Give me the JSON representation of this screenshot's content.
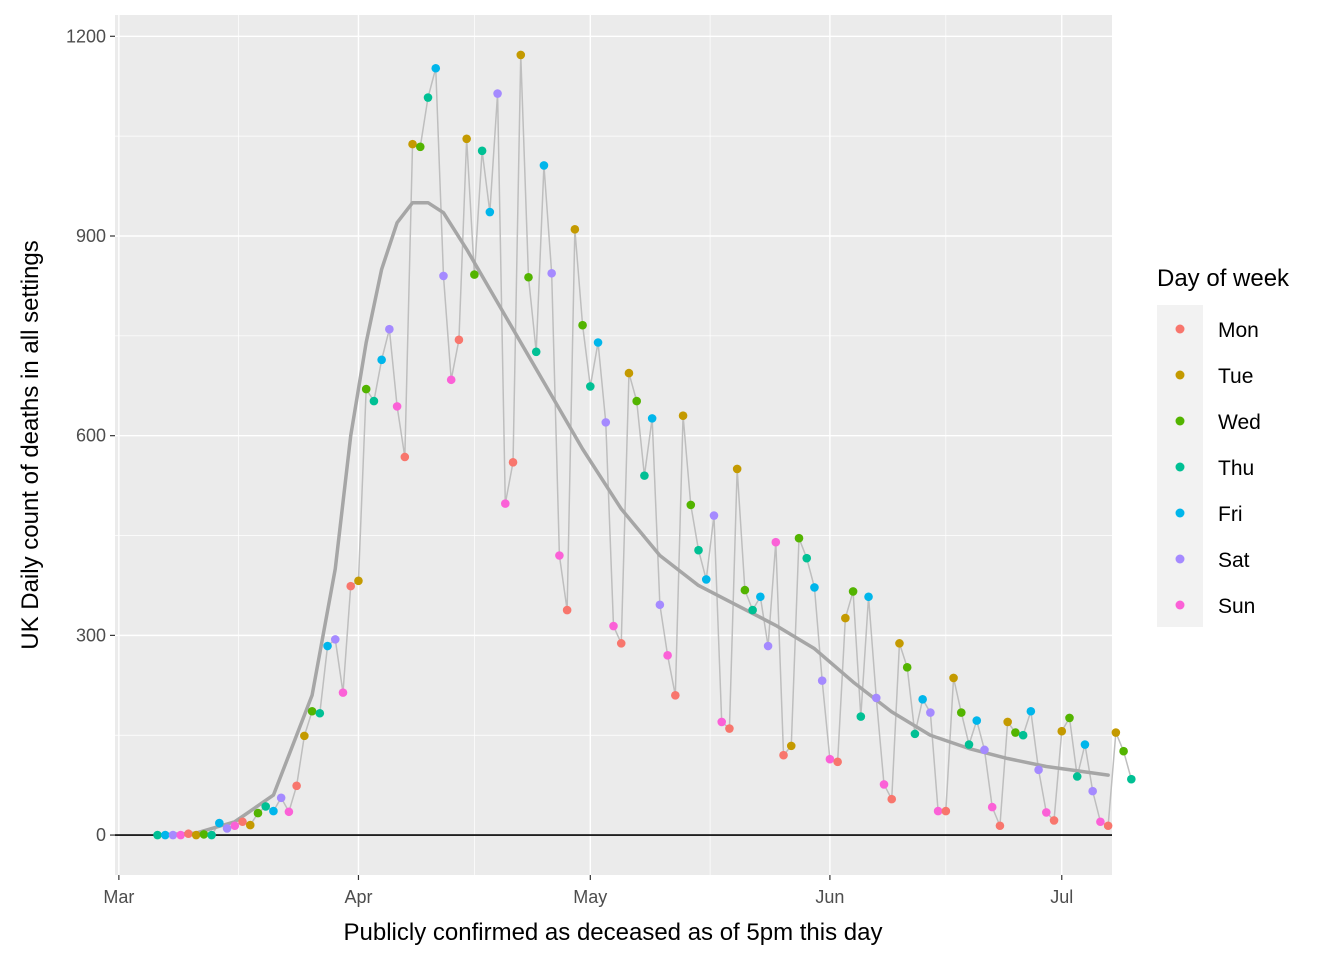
{
  "chart_data": {
    "type": "scatter",
    "xlabel": "Publicly confirmed as deceased as of 5pm this day",
    "ylabel": "UK Daily count of deaths in all settings",
    "x_start_date": "Mar 1",
    "x_axis_unit": "days since Mar 1",
    "xlim": [
      -0.5,
      128.5
    ],
    "ylim": [
      -60,
      1232
    ],
    "x_ticks": [
      {
        "label": "Mar",
        "day": 0
      },
      {
        "label": "Apr",
        "day": 31
      },
      {
        "label": "May",
        "day": 61
      },
      {
        "label": "Jun",
        "day": 92
      },
      {
        "label": "Jul",
        "day": 122
      }
    ],
    "y_ticks": [
      0,
      300,
      600,
      900,
      1200
    ],
    "hline": 0,
    "grid": true,
    "legend": {
      "title": "Day of week",
      "position": "right",
      "entries": [
        {
          "label": "Mon",
          "color": "#F8766D"
        },
        {
          "label": "Tue",
          "color": "#C49A00"
        },
        {
          "label": "Wed",
          "color": "#53B400"
        },
        {
          "label": "Thu",
          "color": "#00C094"
        },
        {
          "label": "Fri",
          "color": "#00B6EB"
        },
        {
          "label": "Sat",
          "color": "#A58AFF"
        },
        {
          "label": "Sun",
          "color": "#FB61D7"
        }
      ]
    },
    "colors": {
      "panel": "#EBEBEB",
      "grid": "#FFFFFF",
      "connector": "#BEBEBE",
      "smooth": "#A6A6A6",
      "zero_line": "#000000"
    },
    "first_day": 5,
    "first_weekday": "Thu",
    "series": [
      {
        "name": "Daily deaths",
        "values": [
          0,
          0,
          0,
          0,
          2,
          0,
          1,
          0,
          18,
          10,
          14,
          20,
          15,
          33,
          43,
          36,
          56,
          35,
          74,
          149,
          186,
          183,
          284,
          294,
          214,
          374,
          382,
          670,
          652,
          714,
          760,
          644,
          568,
          1038,
          1034,
          1108,
          1152,
          840,
          684,
          744,
          1046,
          842,
          1028,
          936,
          1114,
          498,
          560,
          1172,
          838,
          726,
          1006,
          844,
          420,
          338,
          910,
          766,
          674,
          740,
          620,
          314,
          288,
          694,
          652,
          540,
          626,
          346,
          270,
          210,
          630,
          496,
          428,
          384,
          480,
          170,
          160,
          550,
          368,
          338,
          358,
          284,
          440,
          120,
          134,
          446,
          416,
          372,
          232,
          114,
          110,
          326,
          366,
          178,
          358,
          206,
          76,
          54,
          288,
          252,
          152,
          204,
          184,
          36,
          36,
          236,
          184,
          136,
          172,
          128,
          42,
          14,
          170,
          154,
          150,
          186,
          98,
          34,
          22,
          156,
          176,
          88,
          136,
          66,
          20,
          14,
          154,
          126,
          84
        ]
      },
      {
        "name": "Smoothed trend",
        "x": [
          5,
          10,
          15,
          20,
          25,
          28,
          30,
          32,
          34,
          36,
          38,
          40,
          42,
          45,
          50,
          55,
          60,
          65,
          70,
          75,
          80,
          85,
          90,
          95,
          100,
          105,
          110,
          115,
          120,
          125,
          128
        ],
        "values": [
          0,
          3,
          20,
          60,
          210,
          400,
          600,
          740,
          850,
          920,
          950,
          950,
          935,
          880,
          780,
          680,
          580,
          490,
          420,
          375,
          345,
          315,
          280,
          230,
          185,
          150,
          130,
          115,
          103,
          95,
          90
        ]
      }
    ]
  }
}
